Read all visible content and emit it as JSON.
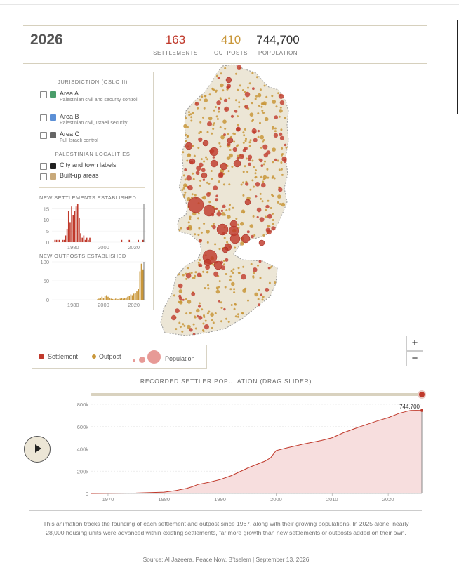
{
  "header": {
    "year": "2026",
    "settlements": {
      "value": "163",
      "label": "SETTLEMENTS",
      "color": "#c0392b"
    },
    "outposts": {
      "value": "410",
      "label": "OUTPOSTS",
      "color": "#c9973a"
    },
    "population": {
      "value": "744,700",
      "label": "POPULATION",
      "color": "#333333"
    }
  },
  "legend": {
    "jurisdiction_title": "JURISDICTION (OSLO II)",
    "areas": [
      {
        "label": "Area A",
        "sub": "Palestinian civil and security control",
        "color": "#4a9d6a",
        "checked": false
      },
      {
        "label": "Area B",
        "sub": "Palestinian civil, Israeli security",
        "color": "#5b8fd6",
        "checked": false
      },
      {
        "label": "Area C",
        "sub": "Full Israeli control",
        "color": "#666666",
        "checked": false
      }
    ],
    "localities_title": "PALESTINIAN LOCALITIES",
    "localities": [
      {
        "label": "City and town labels",
        "color": "#222222",
        "checked": false
      },
      {
        "label": "Built-up areas",
        "color": "#c8a97a",
        "checked": false
      }
    ],
    "new_settlements_title": "NEW SETTLEMENTS ESTABLISHED",
    "new_outposts_title": "NEW OUTPOSTS ESTABLISHED"
  },
  "map_legend": {
    "settlement": "Settlement",
    "outpost": "Outpost",
    "population": "Population",
    "settlement_color": "#c0392b",
    "outpost_color": "#c9973a"
  },
  "zoom": {
    "in": "+",
    "out": "−"
  },
  "slider": {
    "title": "RECORDED SETTLER POPULATION (DRAG SLIDER)",
    "value_label": "744,700"
  },
  "play_icon": "play-icon",
  "caption": "This animation tracks the founding of each settlement and outpost since 1967, along with their growing populations. In 2025 alone, nearly 28,000 housing units were advanced within existing settlements, far more growth than new settlements or outposts added on their own.",
  "source": "Source: Al Jazeera, Peace Now, B’tselem | September 13, 2026",
  "chart_data": [
    {
      "type": "bar",
      "title": "NEW SETTLEMENTS ESTABLISHED",
      "x": [
        1968,
        1969,
        1970,
        1971,
        1972,
        1973,
        1974,
        1975,
        1976,
        1977,
        1978,
        1979,
        1980,
        1981,
        1982,
        1983,
        1984,
        1985,
        1986,
        1987,
        1988,
        1989,
        1990,
        1991,
        1992,
        1993,
        1994,
        1995,
        1996,
        1997,
        1998,
        1999,
        2000,
        2001,
        2002,
        2003,
        2004,
        2005,
        2006,
        2007,
        2008,
        2009,
        2010,
        2011,
        2012,
        2013,
        2014,
        2015,
        2016,
        2017,
        2018,
        2019,
        2020,
        2021,
        2022,
        2023,
        2024,
        2025,
        2026
      ],
      "values": [
        1,
        1,
        1,
        1,
        0,
        1,
        1,
        3,
        6,
        14,
        9,
        16,
        12,
        14,
        16,
        17,
        11,
        4,
        2,
        3,
        1,
        2,
        1,
        2,
        0,
        0,
        0,
        0,
        0,
        0,
        0,
        0,
        0,
        0,
        0,
        0,
        0,
        0,
        0,
        0,
        0,
        0,
        0,
        0,
        1,
        0,
        0,
        0,
        0,
        1,
        0,
        0,
        0,
        0,
        0,
        1,
        0,
        0,
        1
      ],
      "xticks": [
        "1980",
        "2000",
        "2020"
      ],
      "yticks": [
        "0",
        "5",
        "10",
        "15"
      ],
      "ylim": [
        0,
        17
      ],
      "color": "#c0392b"
    },
    {
      "type": "bar",
      "title": "NEW OUTPOSTS ESTABLISHED",
      "x": [
        1996,
        1997,
        1998,
        1999,
        2000,
        2001,
        2002,
        2003,
        2004,
        2005,
        2006,
        2007,
        2008,
        2009,
        2010,
        2011,
        2012,
        2013,
        2014,
        2015,
        2016,
        2017,
        2018,
        2019,
        2020,
        2021,
        2022,
        2023,
        2024,
        2025,
        2026
      ],
      "values": [
        1,
        3,
        5,
        8,
        4,
        10,
        12,
        8,
        5,
        3,
        2,
        2,
        3,
        2,
        2,
        3,
        4,
        3,
        5,
        6,
        8,
        10,
        14,
        12,
        16,
        18,
        22,
        28,
        75,
        95,
        80
      ],
      "xticks": [
        "1980",
        "2000",
        "2020"
      ],
      "yticks": [
        "0",
        "50",
        "100"
      ],
      "ylim": [
        0,
        100
      ],
      "color": "#c9973a"
    },
    {
      "type": "area",
      "title": "RECORDED SETTLER POPULATION (DRAG SLIDER)",
      "x": [
        1967,
        1970,
        1975,
        1980,
        1982,
        1984,
        1985,
        1986,
        1988,
        1990,
        1992,
        1995,
        1998,
        1999,
        2000,
        2002,
        2005,
        2008,
        2010,
        2012,
        2015,
        2018,
        2020,
        2022,
        2024,
        2025,
        2026
      ],
      "values": [
        0,
        1000,
        4000,
        12000,
        25000,
        45000,
        60000,
        80000,
        100000,
        125000,
        160000,
        230000,
        290000,
        320000,
        385000,
        410000,
        445000,
        475000,
        500000,
        545000,
        600000,
        650000,
        680000,
        720000,
        745000,
        746000,
        744700
      ],
      "xticks": [
        "1970",
        "1980",
        "1990",
        "2000",
        "2010",
        "2020"
      ],
      "yticks": [
        "0",
        "200k",
        "400k",
        "600k",
        "800k"
      ],
      "xlim": [
        1967,
        2026
      ],
      "ylim": [
        0,
        800000
      ],
      "annotation": "744,700",
      "color": "#c0392b"
    }
  ]
}
